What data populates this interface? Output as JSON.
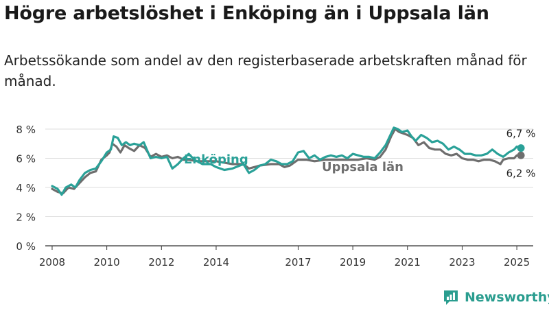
{
  "title": "Högre arbetslöshet i Enköping än i Uppsala län",
  "subtitle": "Arbetssökande som andel av den registerbaserade arbetskraften månad för månad.",
  "brand": "Newsworthy",
  "colors": {
    "enkoping": "#2aa198",
    "uppsala": "#6e6e6e",
    "grid": "#dcdcdc",
    "axis": "#333333",
    "brand": "#2a9d8f"
  },
  "chart_data": {
    "type": "line",
    "xlim": [
      2007.75,
      2025.6
    ],
    "ylim": [
      0,
      8
    ],
    "y_ticks": [
      {
        "value": 0,
        "label": "0 %"
      },
      {
        "value": 2,
        "label": "2 %"
      },
      {
        "value": 4,
        "label": "4 %"
      },
      {
        "value": 6,
        "label": "6 %"
      },
      {
        "value": 8,
        "label": "8 %"
      }
    ],
    "x_ticks": [
      {
        "value": 2008,
        "label": "2008"
      },
      {
        "value": 2010,
        "label": "2010"
      },
      {
        "value": 2012,
        "label": "2012"
      },
      {
        "value": 2014,
        "label": "2014"
      },
      {
        "value": 2017,
        "label": "2017"
      },
      {
        "value": 2019,
        "label": "2019"
      },
      {
        "value": 2021,
        "label": "2021"
      },
      {
        "value": 2023,
        "label": "2023"
      },
      {
        "value": 2025,
        "label": "2025"
      }
    ],
    "grid": true,
    "series": [
      {
        "name": "Uppsala län",
        "color": "#6e6e6e",
        "end_label": "6,2 %",
        "points": [
          [
            2008.0,
            3.9
          ],
          [
            2008.2,
            3.7
          ],
          [
            2008.4,
            3.6
          ],
          [
            2008.6,
            4.0
          ],
          [
            2008.8,
            3.9
          ],
          [
            2009.0,
            4.3
          ],
          [
            2009.2,
            4.7
          ],
          [
            2009.4,
            5.0
          ],
          [
            2009.6,
            5.1
          ],
          [
            2009.8,
            5.9
          ],
          [
            2010.0,
            6.2
          ],
          [
            2010.1,
            6.4
          ],
          [
            2010.2,
            7.0
          ],
          [
            2010.35,
            6.8
          ],
          [
            2010.5,
            6.4
          ],
          [
            2010.65,
            6.9
          ],
          [
            2010.8,
            6.7
          ],
          [
            2011.0,
            6.5
          ],
          [
            2011.2,
            6.9
          ],
          [
            2011.4,
            6.7
          ],
          [
            2011.6,
            6.1
          ],
          [
            2011.8,
            6.3
          ],
          [
            2012.0,
            6.1
          ],
          [
            2012.2,
            6.2
          ],
          [
            2012.4,
            6.0
          ],
          [
            2012.6,
            6.1
          ],
          [
            2012.8,
            5.9
          ],
          [
            2013.0,
            5.9
          ],
          [
            2013.3,
            5.8
          ],
          [
            2013.6,
            5.8
          ],
          [
            2014.0,
            5.8
          ],
          [
            2014.3,
            5.7
          ],
          [
            2014.6,
            5.6
          ],
          [
            2015.0,
            5.6
          ],
          [
            2015.2,
            5.3
          ],
          [
            2015.4,
            5.4
          ],
          [
            2015.6,
            5.5
          ],
          [
            2016.0,
            5.6
          ],
          [
            2016.3,
            5.6
          ],
          [
            2016.5,
            5.4
          ],
          [
            2016.7,
            5.5
          ],
          [
            2017.0,
            5.9
          ],
          [
            2017.3,
            5.9
          ],
          [
            2017.6,
            5.8
          ],
          [
            2018.0,
            5.9
          ],
          [
            2018.5,
            5.9
          ],
          [
            2019.0,
            5.9
          ],
          [
            2019.2,
            5.9
          ],
          [
            2019.5,
            6.0
          ],
          [
            2019.8,
            5.9
          ],
          [
            2020.0,
            6.1
          ],
          [
            2020.2,
            6.6
          ],
          [
            2020.4,
            7.5
          ],
          [
            2020.55,
            8.0
          ],
          [
            2020.7,
            7.8
          ],
          [
            2020.85,
            7.7
          ],
          [
            2021.0,
            7.6
          ],
          [
            2021.2,
            7.4
          ],
          [
            2021.4,
            6.9
          ],
          [
            2021.6,
            7.1
          ],
          [
            2021.8,
            6.7
          ],
          [
            2022.0,
            6.6
          ],
          [
            2022.2,
            6.6
          ],
          [
            2022.4,
            6.3
          ],
          [
            2022.6,
            6.2
          ],
          [
            2022.8,
            6.3
          ],
          [
            2023.0,
            6.0
          ],
          [
            2023.2,
            5.9
          ],
          [
            2023.4,
            5.9
          ],
          [
            2023.6,
            5.8
          ],
          [
            2023.8,
            5.9
          ],
          [
            2024.0,
            5.9
          ],
          [
            2024.2,
            5.8
          ],
          [
            2024.4,
            5.6
          ],
          [
            2024.5,
            5.9
          ],
          [
            2024.7,
            6.0
          ],
          [
            2024.9,
            6.0
          ],
          [
            2025.0,
            6.2
          ],
          [
            2025.15,
            6.2
          ]
        ]
      },
      {
        "name": "Enköping",
        "color": "#2aa198",
        "end_label": "6,7 %",
        "points": [
          [
            2008.0,
            4.1
          ],
          [
            2008.2,
            3.9
          ],
          [
            2008.35,
            3.5
          ],
          [
            2008.5,
            4.0
          ],
          [
            2008.7,
            4.2
          ],
          [
            2008.85,
            4.0
          ],
          [
            2009.0,
            4.5
          ],
          [
            2009.2,
            5.0
          ],
          [
            2009.4,
            5.2
          ],
          [
            2009.6,
            5.3
          ],
          [
            2009.8,
            5.8
          ],
          [
            2010.0,
            6.4
          ],
          [
            2010.15,
            6.6
          ],
          [
            2010.25,
            7.5
          ],
          [
            2010.4,
            7.4
          ],
          [
            2010.55,
            6.9
          ],
          [
            2010.7,
            7.1
          ],
          [
            2010.85,
            6.9
          ],
          [
            2011.0,
            7.0
          ],
          [
            2011.2,
            6.9
          ],
          [
            2011.35,
            7.1
          ],
          [
            2011.6,
            6.0
          ],
          [
            2011.8,
            6.1
          ],
          [
            2012.0,
            6.0
          ],
          [
            2012.2,
            6.1
          ],
          [
            2012.4,
            5.3
          ],
          [
            2012.6,
            5.6
          ],
          [
            2012.8,
            6.0
          ],
          [
            2013.0,
            6.3
          ],
          [
            2013.2,
            5.9
          ],
          [
            2013.5,
            5.6
          ],
          [
            2013.8,
            5.6
          ],
          [
            2014.0,
            5.4
          ],
          [
            2014.3,
            5.2
          ],
          [
            2014.6,
            5.3
          ],
          [
            2015.0,
            5.6
          ],
          [
            2015.2,
            5.0
          ],
          [
            2015.4,
            5.2
          ],
          [
            2015.6,
            5.5
          ],
          [
            2015.8,
            5.6
          ],
          [
            2016.0,
            5.9
          ],
          [
            2016.2,
            5.8
          ],
          [
            2016.4,
            5.6
          ],
          [
            2016.6,
            5.6
          ],
          [
            2016.8,
            5.8
          ],
          [
            2017.0,
            6.4
          ],
          [
            2017.2,
            6.5
          ],
          [
            2017.4,
            6.0
          ],
          [
            2017.6,
            6.2
          ],
          [
            2017.8,
            5.9
          ],
          [
            2018.0,
            6.1
          ],
          [
            2018.2,
            6.2
          ],
          [
            2018.4,
            6.1
          ],
          [
            2018.6,
            6.2
          ],
          [
            2018.8,
            6.0
          ],
          [
            2019.0,
            6.3
          ],
          [
            2019.2,
            6.2
          ],
          [
            2019.4,
            6.1
          ],
          [
            2019.6,
            6.1
          ],
          [
            2019.8,
            6.0
          ],
          [
            2020.0,
            6.4
          ],
          [
            2020.2,
            6.9
          ],
          [
            2020.4,
            7.7
          ],
          [
            2020.5,
            8.1
          ],
          [
            2020.65,
            8.0
          ],
          [
            2020.8,
            7.8
          ],
          [
            2021.0,
            7.9
          ],
          [
            2021.15,
            7.5
          ],
          [
            2021.3,
            7.2
          ],
          [
            2021.5,
            7.6
          ],
          [
            2021.7,
            7.4
          ],
          [
            2021.9,
            7.1
          ],
          [
            2022.1,
            7.2
          ],
          [
            2022.3,
            7.0
          ],
          [
            2022.5,
            6.6
          ],
          [
            2022.7,
            6.8
          ],
          [
            2022.9,
            6.6
          ],
          [
            2023.1,
            6.3
          ],
          [
            2023.3,
            6.3
          ],
          [
            2023.5,
            6.2
          ],
          [
            2023.7,
            6.2
          ],
          [
            2023.9,
            6.3
          ],
          [
            2024.1,
            6.6
          ],
          [
            2024.3,
            6.3
          ],
          [
            2024.5,
            6.1
          ],
          [
            2024.7,
            6.4
          ],
          [
            2024.9,
            6.6
          ],
          [
            2025.0,
            6.8
          ],
          [
            2025.15,
            6.7
          ]
        ]
      }
    ],
    "labels": [
      {
        "text": "Enköping",
        "series": "Enköping"
      },
      {
        "text": "Uppsala län",
        "series": "Uppsala län"
      }
    ]
  }
}
